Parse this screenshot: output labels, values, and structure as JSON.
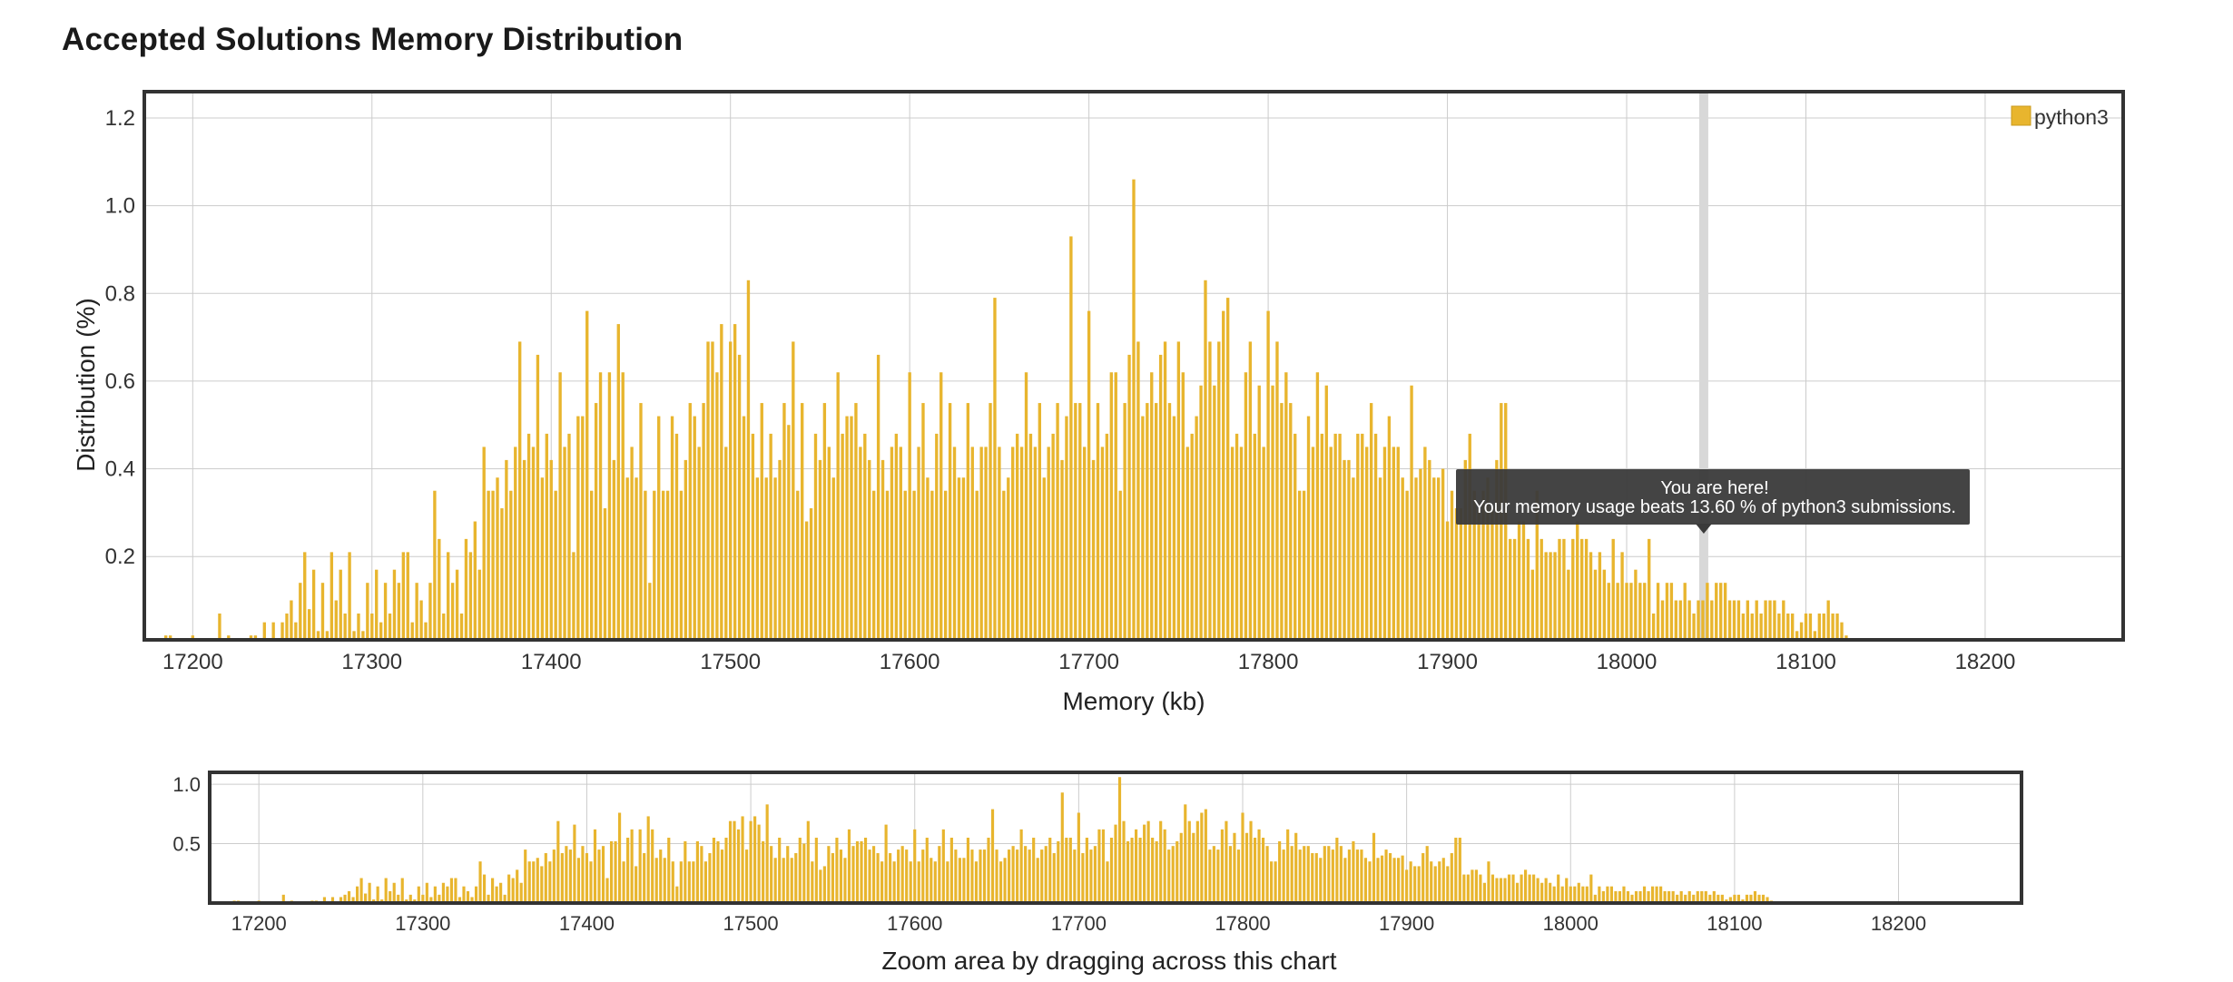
{
  "page": {
    "title": "Accepted Solutions Memory Distribution"
  },
  "colors": {
    "bar": "#E8B52E",
    "grid": "#cccccc",
    "frame": "#333333",
    "tooltip_bg": "#3a3a3a",
    "marker": "#d8d8d8"
  },
  "chart_data": [
    {
      "type": "bar",
      "role": "main",
      "xlabel": "Memory (kb)",
      "ylabel": "Distribution (%)",
      "xlim": [
        17173,
        17277
      ],
      "ylim": [
        0.01,
        1.26
      ],
      "x_ticks": [
        17200,
        17300,
        17400,
        17500,
        17600,
        17700,
        17800,
        17900,
        18000,
        18100,
        18200
      ],
      "y_ticks": [
        0.2,
        0.4,
        0.6,
        0.8,
        1.0,
        1.2
      ],
      "legend": {
        "position": "top-right",
        "entries": [
          "python3"
        ]
      },
      "grid": true,
      "series": [
        {
          "name": "python3",
          "x_start": 17185,
          "x_step": 2.5,
          "values": [
            0.02,
            0.02,
            0,
            0,
            0,
            0,
            0.02,
            0,
            0,
            0,
            0,
            0,
            0.07,
            0,
            0.02,
            0,
            0,
            0,
            0,
            0.02,
            0.02,
            0,
            0.05,
            0,
            0.05,
            0,
            0.05,
            0.07,
            0.1,
            0.05,
            0.14,
            0.21,
            0.08,
            0.17,
            0.03,
            0.14,
            0.03,
            0.21,
            0.1,
            0.17,
            0.07,
            0.21,
            0.03,
            0.07,
            0.03,
            0.14,
            0.07,
            0.17,
            0.05,
            0.14,
            0.07,
            0.17,
            0.14,
            0.21,
            0.21,
            0.05,
            0.14,
            0.1,
            0.05,
            0.14,
            0.35,
            0.24,
            0.07,
            0.21,
            0.14,
            0.17,
            0.07,
            0.24,
            0.21,
            0.28,
            0.17,
            0.45,
            0.35,
            0.35,
            0.38,
            0.31,
            0.42,
            0.35,
            0.45,
            0.69,
            0.42,
            0.48,
            0.45,
            0.66,
            0.38,
            0.48,
            0.42,
            0.35,
            0.62,
            0.45,
            0.48,
            0.21,
            0.52,
            0.52,
            0.76,
            0.35,
            0.55,
            0.62,
            0.31,
            0.62,
            0.42,
            0.73,
            0.62,
            0.38,
            0.45,
            0.38,
            0.55,
            0.35,
            0.14,
            0.35,
            0.52,
            0.35,
            0.35,
            0.52,
            0.48,
            0.35,
            0.42,
            0.55,
            0.52,
            0.45,
            0.55,
            0.69,
            0.69,
            0.62,
            0.73,
            0.45,
            0.69,
            0.73,
            0.66,
            0.52,
            0.83,
            0.48,
            0.38,
            0.55,
            0.38,
            0.48,
            0.38,
            0.42,
            0.55,
            0.5,
            0.69,
            0.35,
            0.55,
            0.28,
            0.31,
            0.48,
            0.42,
            0.55,
            0.45,
            0.38,
            0.62,
            0.48,
            0.52,
            0.52,
            0.55,
            0.45,
            0.48,
            0.42,
            0.35,
            0.66,
            0.42,
            0.35,
            0.45,
            0.48,
            0.45,
            0.35,
            0.62,
            0.35,
            0.45,
            0.55,
            0.38,
            0.35,
            0.48,
            0.62,
            0.35,
            0.55,
            0.45,
            0.38,
            0.38,
            0.55,
            0.45,
            0.35,
            0.45,
            0.45,
            0.55,
            0.79,
            0.45,
            0.35,
            0.38,
            0.45,
            0.48,
            0.45,
            0.62,
            0.48,
            0.45,
            0.55,
            0.38,
            0.45,
            0.48,
            0.55,
            0.42,
            0.52,
            0.93,
            0.55,
            0.55,
            0.45,
            0.76,
            0.42,
            0.55,
            0.45,
            0.48,
            0.62,
            0.62,
            0.35,
            0.55,
            0.66,
            1.06,
            0.69,
            0.52,
            0.55,
            0.62,
            0.55,
            0.66,
            0.69,
            0.55,
            0.52,
            0.69,
            0.62,
            0.45,
            0.48,
            0.52,
            0.59,
            0.83,
            0.69,
            0.59,
            0.69,
            0.76,
            0.79,
            0.45,
            0.48,
            0.45,
            0.62,
            0.69,
            0.48,
            0.59,
            0.45,
            0.76,
            0.59,
            0.69,
            0.55,
            0.62,
            0.55,
            0.48,
            0.35,
            0.35,
            0.52,
            0.45,
            0.62,
            0.48,
            0.59,
            0.45,
            0.48,
            0.48,
            0.42,
            0.42,
            0.38,
            0.48,
            0.48,
            0.45,
            0.55,
            0.48,
            0.38,
            0.45,
            0.52,
            0.45,
            0.45,
            0.38,
            0.35,
            0.59,
            0.38,
            0.4,
            0.45,
            0.42,
            0.38,
            0.38,
            0.4,
            0.28,
            0.35,
            0.31,
            0.31,
            0.42,
            0.48,
            0.35,
            0.31,
            0.35,
            0.38,
            0.31,
            0.42,
            0.55,
            0.55,
            0.24,
            0.24,
            0.28,
            0.28,
            0.24,
            0.17,
            0.35,
            0.24,
            0.21,
            0.21,
            0.21,
            0.24,
            0.24,
            0.17,
            0.24,
            0.28,
            0.24,
            0.24,
            0.21,
            0.17,
            0.21,
            0.17,
            0.14,
            0.24,
            0.14,
            0.21,
            0.14,
            0.14,
            0.17,
            0.14,
            0.14,
            0.24,
            0.07,
            0.14,
            0.1,
            0.14,
            0.14,
            0.1,
            0.1,
            0.14,
            0.1,
            0.07,
            0.1,
            0.1,
            0.14,
            0.1,
            0.14,
            0.14,
            0.14,
            0.1,
            0.1,
            0.1,
            0.07,
            0.1,
            0.07,
            0.1,
            0.07,
            0.1,
            0.1,
            0.1,
            0.07,
            0.1,
            0.07,
            0.07,
            0.03,
            0.05,
            0.07,
            0.07,
            0.03,
            0.07,
            0.07,
            0.1,
            0.07,
            0.07,
            0.05,
            0.02
          ]
        }
      ],
      "marker": {
        "x": 18043
      },
      "tooltip": {
        "line1": "You are here!",
        "line2": "Your memory usage beats 13.60 % of python3 submissions."
      }
    },
    {
      "type": "bar",
      "role": "navigator",
      "xlabel": "Zoom area by dragging across this chart",
      "x_ticks": [
        17200,
        17300,
        17400,
        17500,
        17600,
        17700,
        17800,
        17900,
        18000,
        18100,
        18200
      ],
      "y_ticks": [
        0.5,
        1.0
      ],
      "ylim": [
        0,
        1.1
      ],
      "grid": true
    }
  ]
}
